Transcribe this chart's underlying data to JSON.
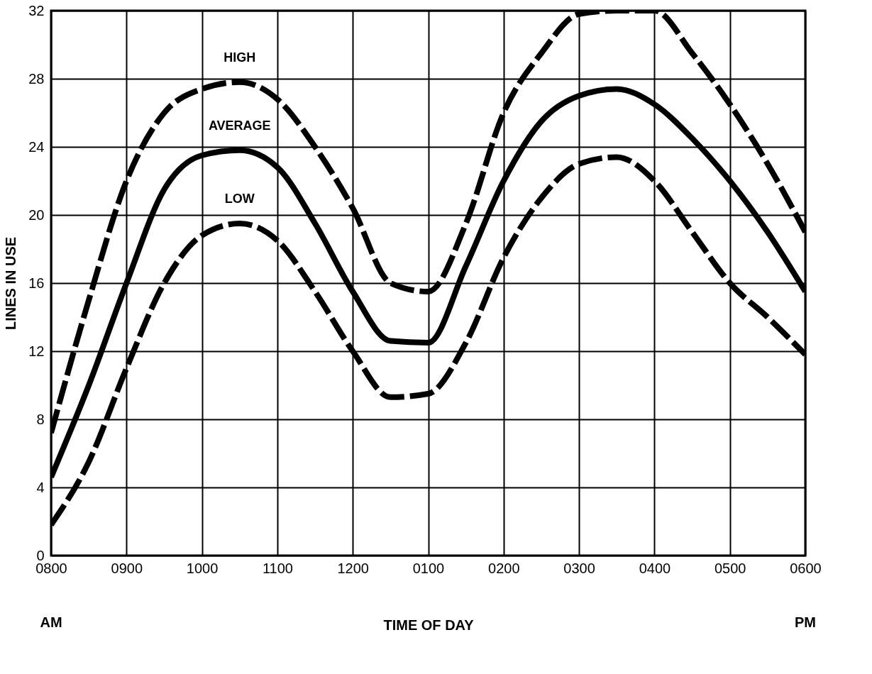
{
  "chart_data": {
    "type": "line",
    "xlabel": "TIME OF DAY",
    "ylabel": "LINES IN USE",
    "categories": [
      "0800",
      null,
      "0900",
      null,
      "1000",
      null,
      "1100",
      null,
      "1200",
      null,
      "0100",
      null,
      "0200",
      null,
      "0300",
      null,
      "0400",
      null,
      "0500",
      null,
      "0600"
    ],
    "series": [
      {
        "name": "HIGH",
        "color": "#000000",
        "line_style": "dashed",
        "values": [
          7.2,
          15,
          22,
          26,
          27.4,
          27.8,
          26.8,
          24,
          20.4,
          16,
          15.5,
          19.5,
          26,
          29.5,
          31.8,
          32,
          32,
          29.5,
          26.5,
          23,
          19
        ]
      },
      {
        "name": "AVERAGE",
        "color": "#000000",
        "line_style": "solid",
        "values": [
          4.6,
          10,
          16,
          21.5,
          23.5,
          23.8,
          22.8,
          19.5,
          15.5,
          12.6,
          12.5,
          17,
          22,
          25.5,
          27,
          27.4,
          26.5,
          24.5,
          22,
          19,
          15.5
        ]
      },
      {
        "name": "LOW",
        "color": "#000000",
        "line_style": "dashed",
        "values": [
          1.8,
          5.5,
          11,
          16,
          18.8,
          19.5,
          18.5,
          15.5,
          12,
          9.3,
          9.5,
          12.5,
          17.5,
          21,
          23,
          23.4,
          22,
          19,
          16,
          14,
          11.8
        ]
      }
    ],
    "ylim": [
      0,
      32
    ],
    "yticks": [
      0,
      4,
      8,
      12,
      16,
      20,
      24,
      28,
      32
    ],
    "grid": true,
    "legend": false,
    "annotations": [
      "AM",
      "PM"
    ]
  }
}
